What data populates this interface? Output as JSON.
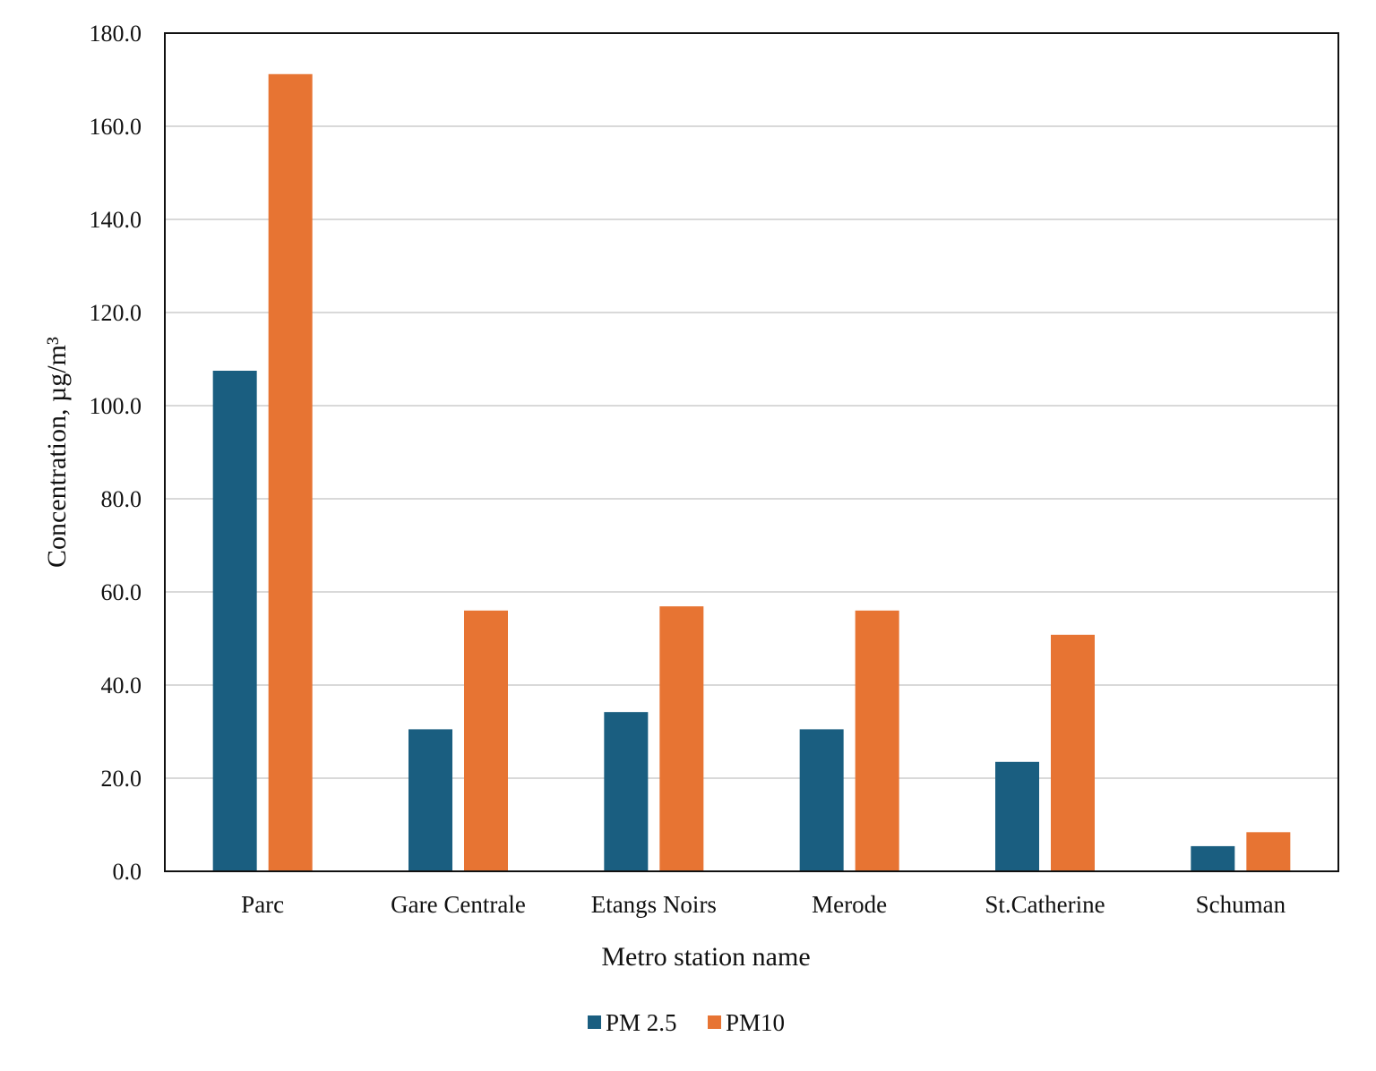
{
  "chart_data": {
    "type": "bar",
    "title": "",
    "xlabel": "Metro station name",
    "ylabel": "Concentration, µg/m³",
    "ylim": [
      0,
      180
    ],
    "yticks": [
      "0.0",
      "20.0",
      "40.0",
      "60.0",
      "80.0",
      "100.0",
      "120.0",
      "140.0",
      "160.0",
      "180.0"
    ],
    "grid": true,
    "legend_position": "bottom",
    "categories": [
      "Parc",
      "Gare Centrale",
      "Etangs Noirs",
      "Merode",
      "St.Catherine",
      "Schuman"
    ],
    "series": [
      {
        "name": "PM 2.5",
        "color": "#1a5e80",
        "values": [
          107.5,
          30.5,
          34.2,
          30.5,
          23.5,
          5.4
        ]
      },
      {
        "name": "PM10",
        "color": "#e77433",
        "values": [
          171.2,
          56.0,
          56.9,
          56.0,
          50.8,
          8.4
        ]
      }
    ]
  }
}
